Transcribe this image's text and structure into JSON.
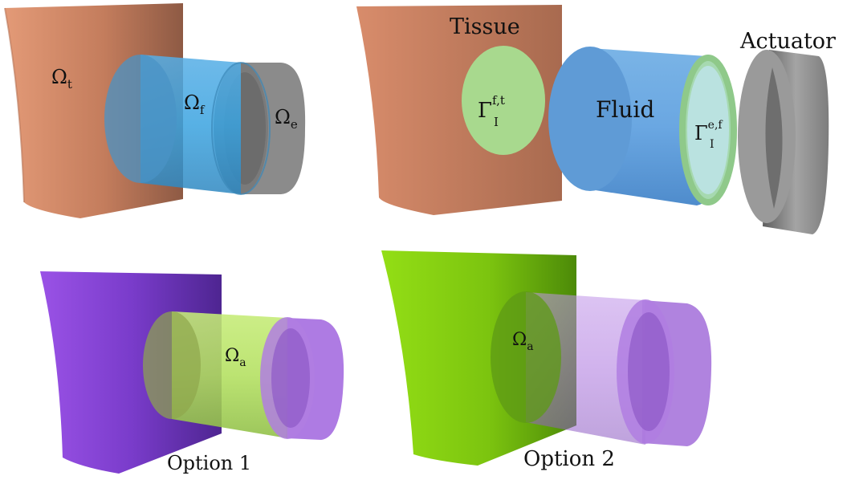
{
  "colors": {
    "tissue": "#d98b6a",
    "fluid": "#4aa6df",
    "actuator": "#8c8c8c",
    "interface": "#9ed08a",
    "option1_block": "#9a4fe0",
    "option1_cylinder": "#b8e06a",
    "option2_block": "#8fd81a",
    "option2_cylinder": "#b07ad8"
  },
  "panel_top_left": {
    "tissue_symbol": "Ω",
    "tissue_sub": "t",
    "fluid_symbol": "Ω",
    "fluid_sub": "f",
    "actuator_symbol": "Ω",
    "actuator_sub": "e"
  },
  "panel_top_right": {
    "tissue_label": "Tissue",
    "actuator_label": "Actuator",
    "fluid_label": "Fluid",
    "interface_ft_symbol": "Γ",
    "interface_ft_sup": "f,t",
    "interface_ft_sub": "I",
    "interface_ef_symbol": "Γ",
    "interface_ef_sup": "e,f",
    "interface_ef_sub": "I"
  },
  "panel_bottom_left": {
    "domain_symbol": "Ω",
    "domain_sub": "a",
    "caption": "Option 1"
  },
  "panel_bottom_right": {
    "domain_symbol": "Ω",
    "domain_sub": "a",
    "caption": "Option 2"
  }
}
